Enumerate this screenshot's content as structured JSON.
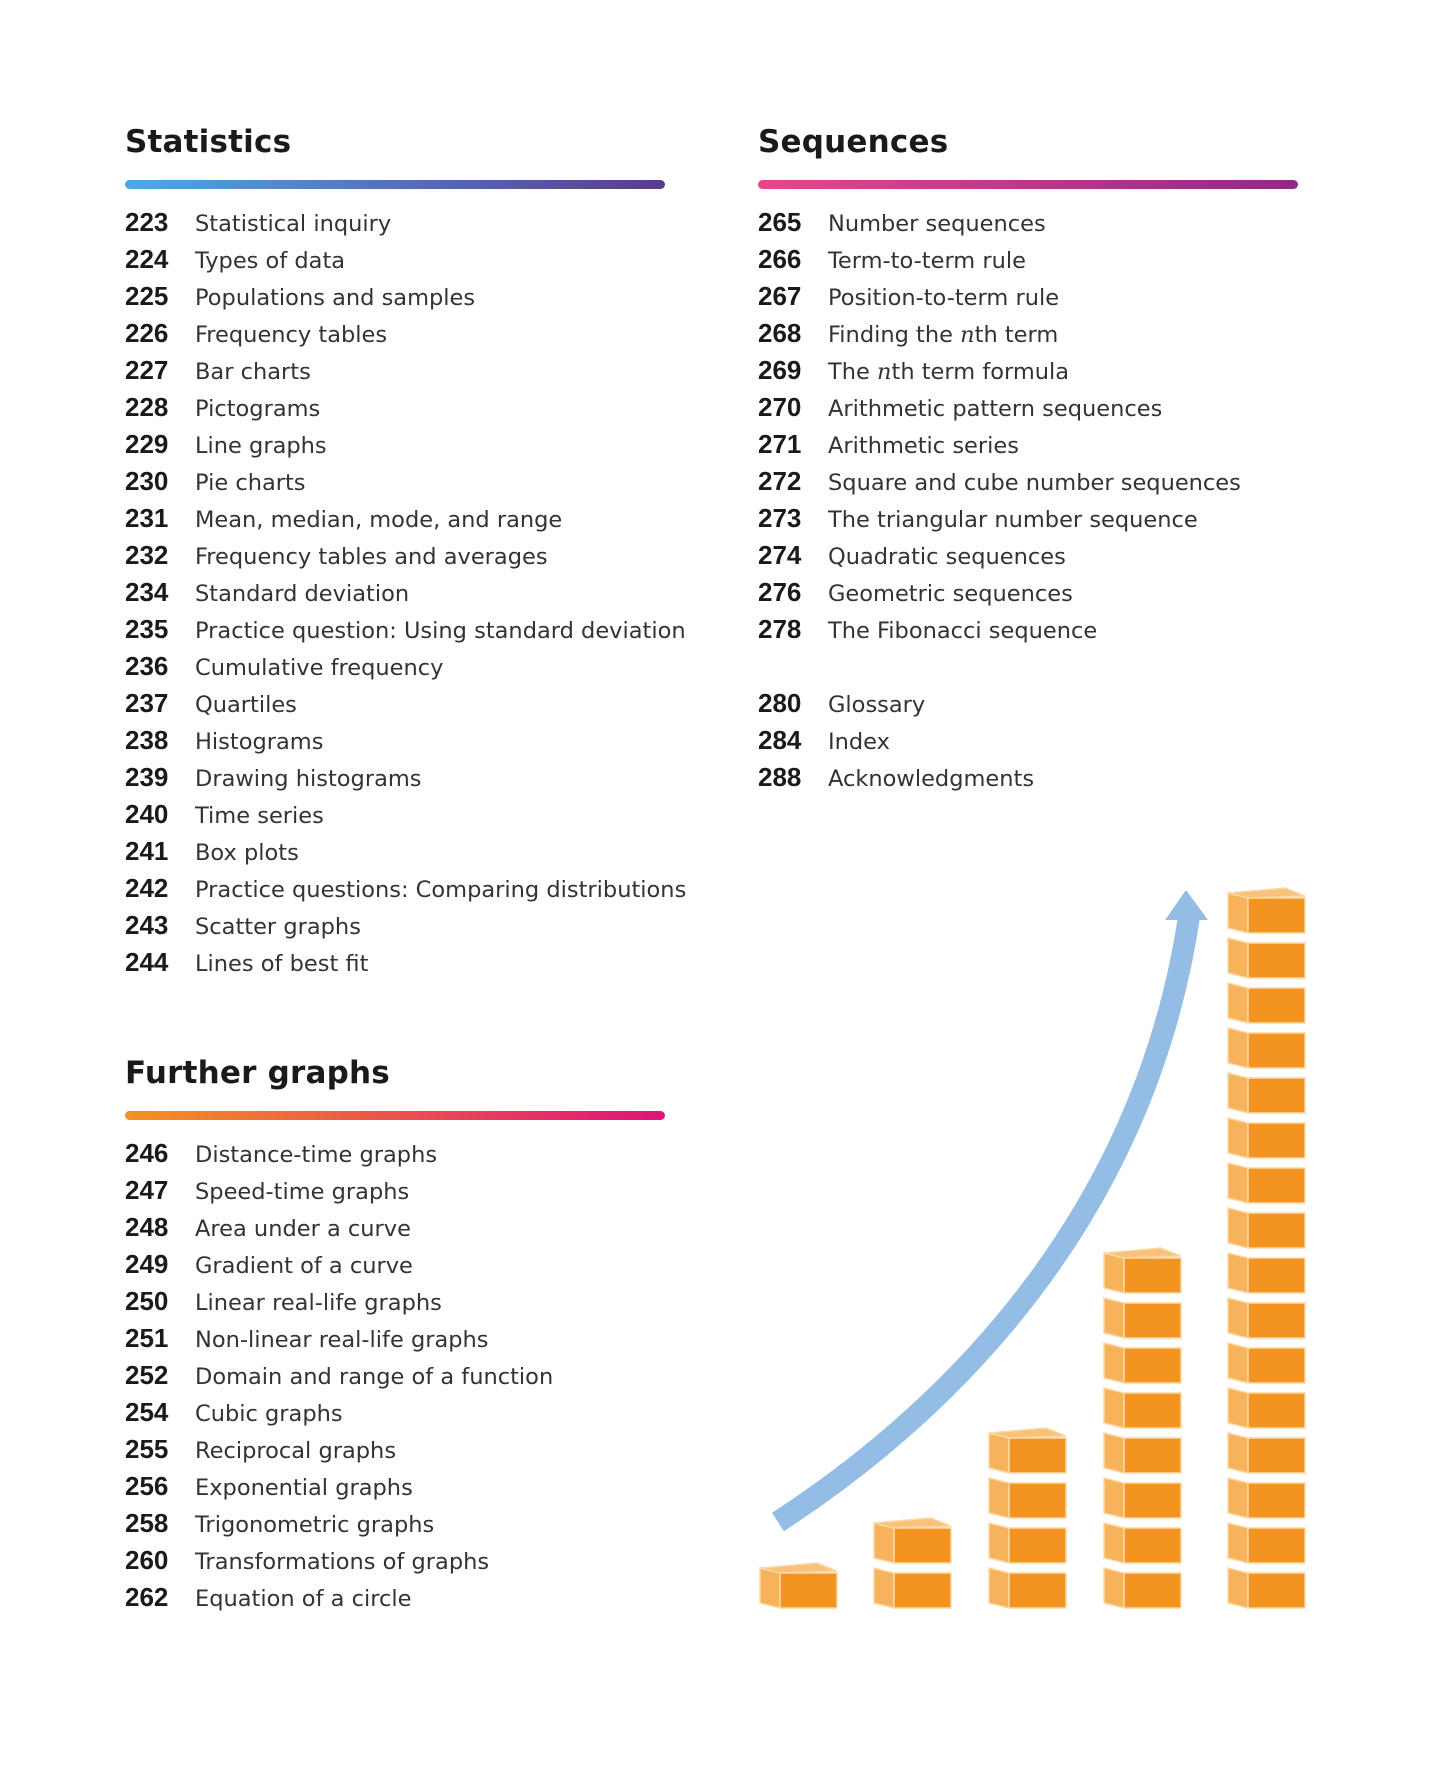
{
  "statistics": {
    "heading": "Statistics",
    "items": [
      {
        "page": "223",
        "title": "Statistical inquiry"
      },
      {
        "page": "224",
        "title": "Types of data"
      },
      {
        "page": "225",
        "title": "Populations and samples"
      },
      {
        "page": "226",
        "title": "Frequency tables"
      },
      {
        "page": "227",
        "title": "Bar charts"
      },
      {
        "page": "228",
        "title": "Pictograms"
      },
      {
        "page": "229",
        "title": "Line graphs"
      },
      {
        "page": "230",
        "title": "Pie charts"
      },
      {
        "page": "231",
        "title": "Mean, median, mode, and range"
      },
      {
        "page": "232",
        "title": "Frequency tables and averages"
      },
      {
        "page": "234",
        "title": "Standard deviation"
      },
      {
        "page": "235",
        "title": "Practice question:  Using standard deviation"
      },
      {
        "page": "236",
        "title": "Cumulative frequency"
      },
      {
        "page": "237",
        "title": "Quartiles"
      },
      {
        "page": "238",
        "title": "Histograms"
      },
      {
        "page": "239",
        "title": "Drawing histograms"
      },
      {
        "page": "240",
        "title": "Time series"
      },
      {
        "page": "241",
        "title": "Box plots"
      },
      {
        "page": "242",
        "title": "Practice questions:  Comparing distributions"
      },
      {
        "page": "243",
        "title": "Scatter graphs"
      },
      {
        "page": "244",
        "title": "Lines of best fit"
      }
    ]
  },
  "further_graphs": {
    "heading": "Further graphs",
    "items": [
      {
        "page": "246",
        "title": "Distance-time graphs"
      },
      {
        "page": "247",
        "title": "Speed-time graphs"
      },
      {
        "page": "248",
        "title": "Area under a curve"
      },
      {
        "page": "249",
        "title": "Gradient of a curve"
      },
      {
        "page": "250",
        "title": "Linear real-life graphs"
      },
      {
        "page": "251",
        "title": "Non-linear real-life graphs"
      },
      {
        "page": "252",
        "title": "Domain and range of a function"
      },
      {
        "page": "254",
        "title": "Cubic graphs"
      },
      {
        "page": "255",
        "title": "Reciprocal graphs"
      },
      {
        "page": "256",
        "title": "Exponential graphs"
      },
      {
        "page": "258",
        "title": "Trigonometric graphs"
      },
      {
        "page": "260",
        "title": "Transformations of graphs"
      },
      {
        "page": "262",
        "title": "Equation of a circle"
      }
    ]
  },
  "sequences": {
    "heading": "Sequences",
    "items": [
      {
        "page": "265",
        "title": "Number sequences"
      },
      {
        "page": "266",
        "title": "Term-to-term rule"
      },
      {
        "page": "267",
        "title": "Position-to-term rule"
      },
      {
        "page": "268",
        "title": "Finding the nth term"
      },
      {
        "page": "269",
        "title": "The nth term formula"
      },
      {
        "page": "270",
        "title": "Arithmetic pattern sequences"
      },
      {
        "page": "271",
        "title": "Arithmetic series"
      },
      {
        "page": "272",
        "title": "Square and cube number sequences"
      },
      {
        "page": "273",
        "title": "The triangular number sequence"
      },
      {
        "page": "274",
        "title": "Quadratic sequences"
      },
      {
        "page": "276",
        "title": "Geometric sequences"
      },
      {
        "page": "278",
        "title": "The Fibonacci sequence"
      }
    ]
  },
  "back_matter": {
    "items": [
      {
        "page": "280",
        "title": "Glossary"
      },
      {
        "page": "284",
        "title": "Index"
      },
      {
        "page": "288",
        "title": "Acknowledgments"
      }
    ]
  },
  "illustration": {
    "column_cube_counts": [
      1,
      2,
      4,
      8,
      16
    ],
    "cube_color": "#f39320",
    "cube_side_color": "#f7b35c",
    "arrow_color": "#94bde6"
  },
  "colors": {
    "statistics_bar": [
      "#4ea9e0",
      "#5b3b8c"
    ],
    "further_graphs_bar": [
      "#f3921f",
      "#e0137b"
    ],
    "sequences_bar": [
      "#e8468b",
      "#8e2a8a"
    ]
  }
}
